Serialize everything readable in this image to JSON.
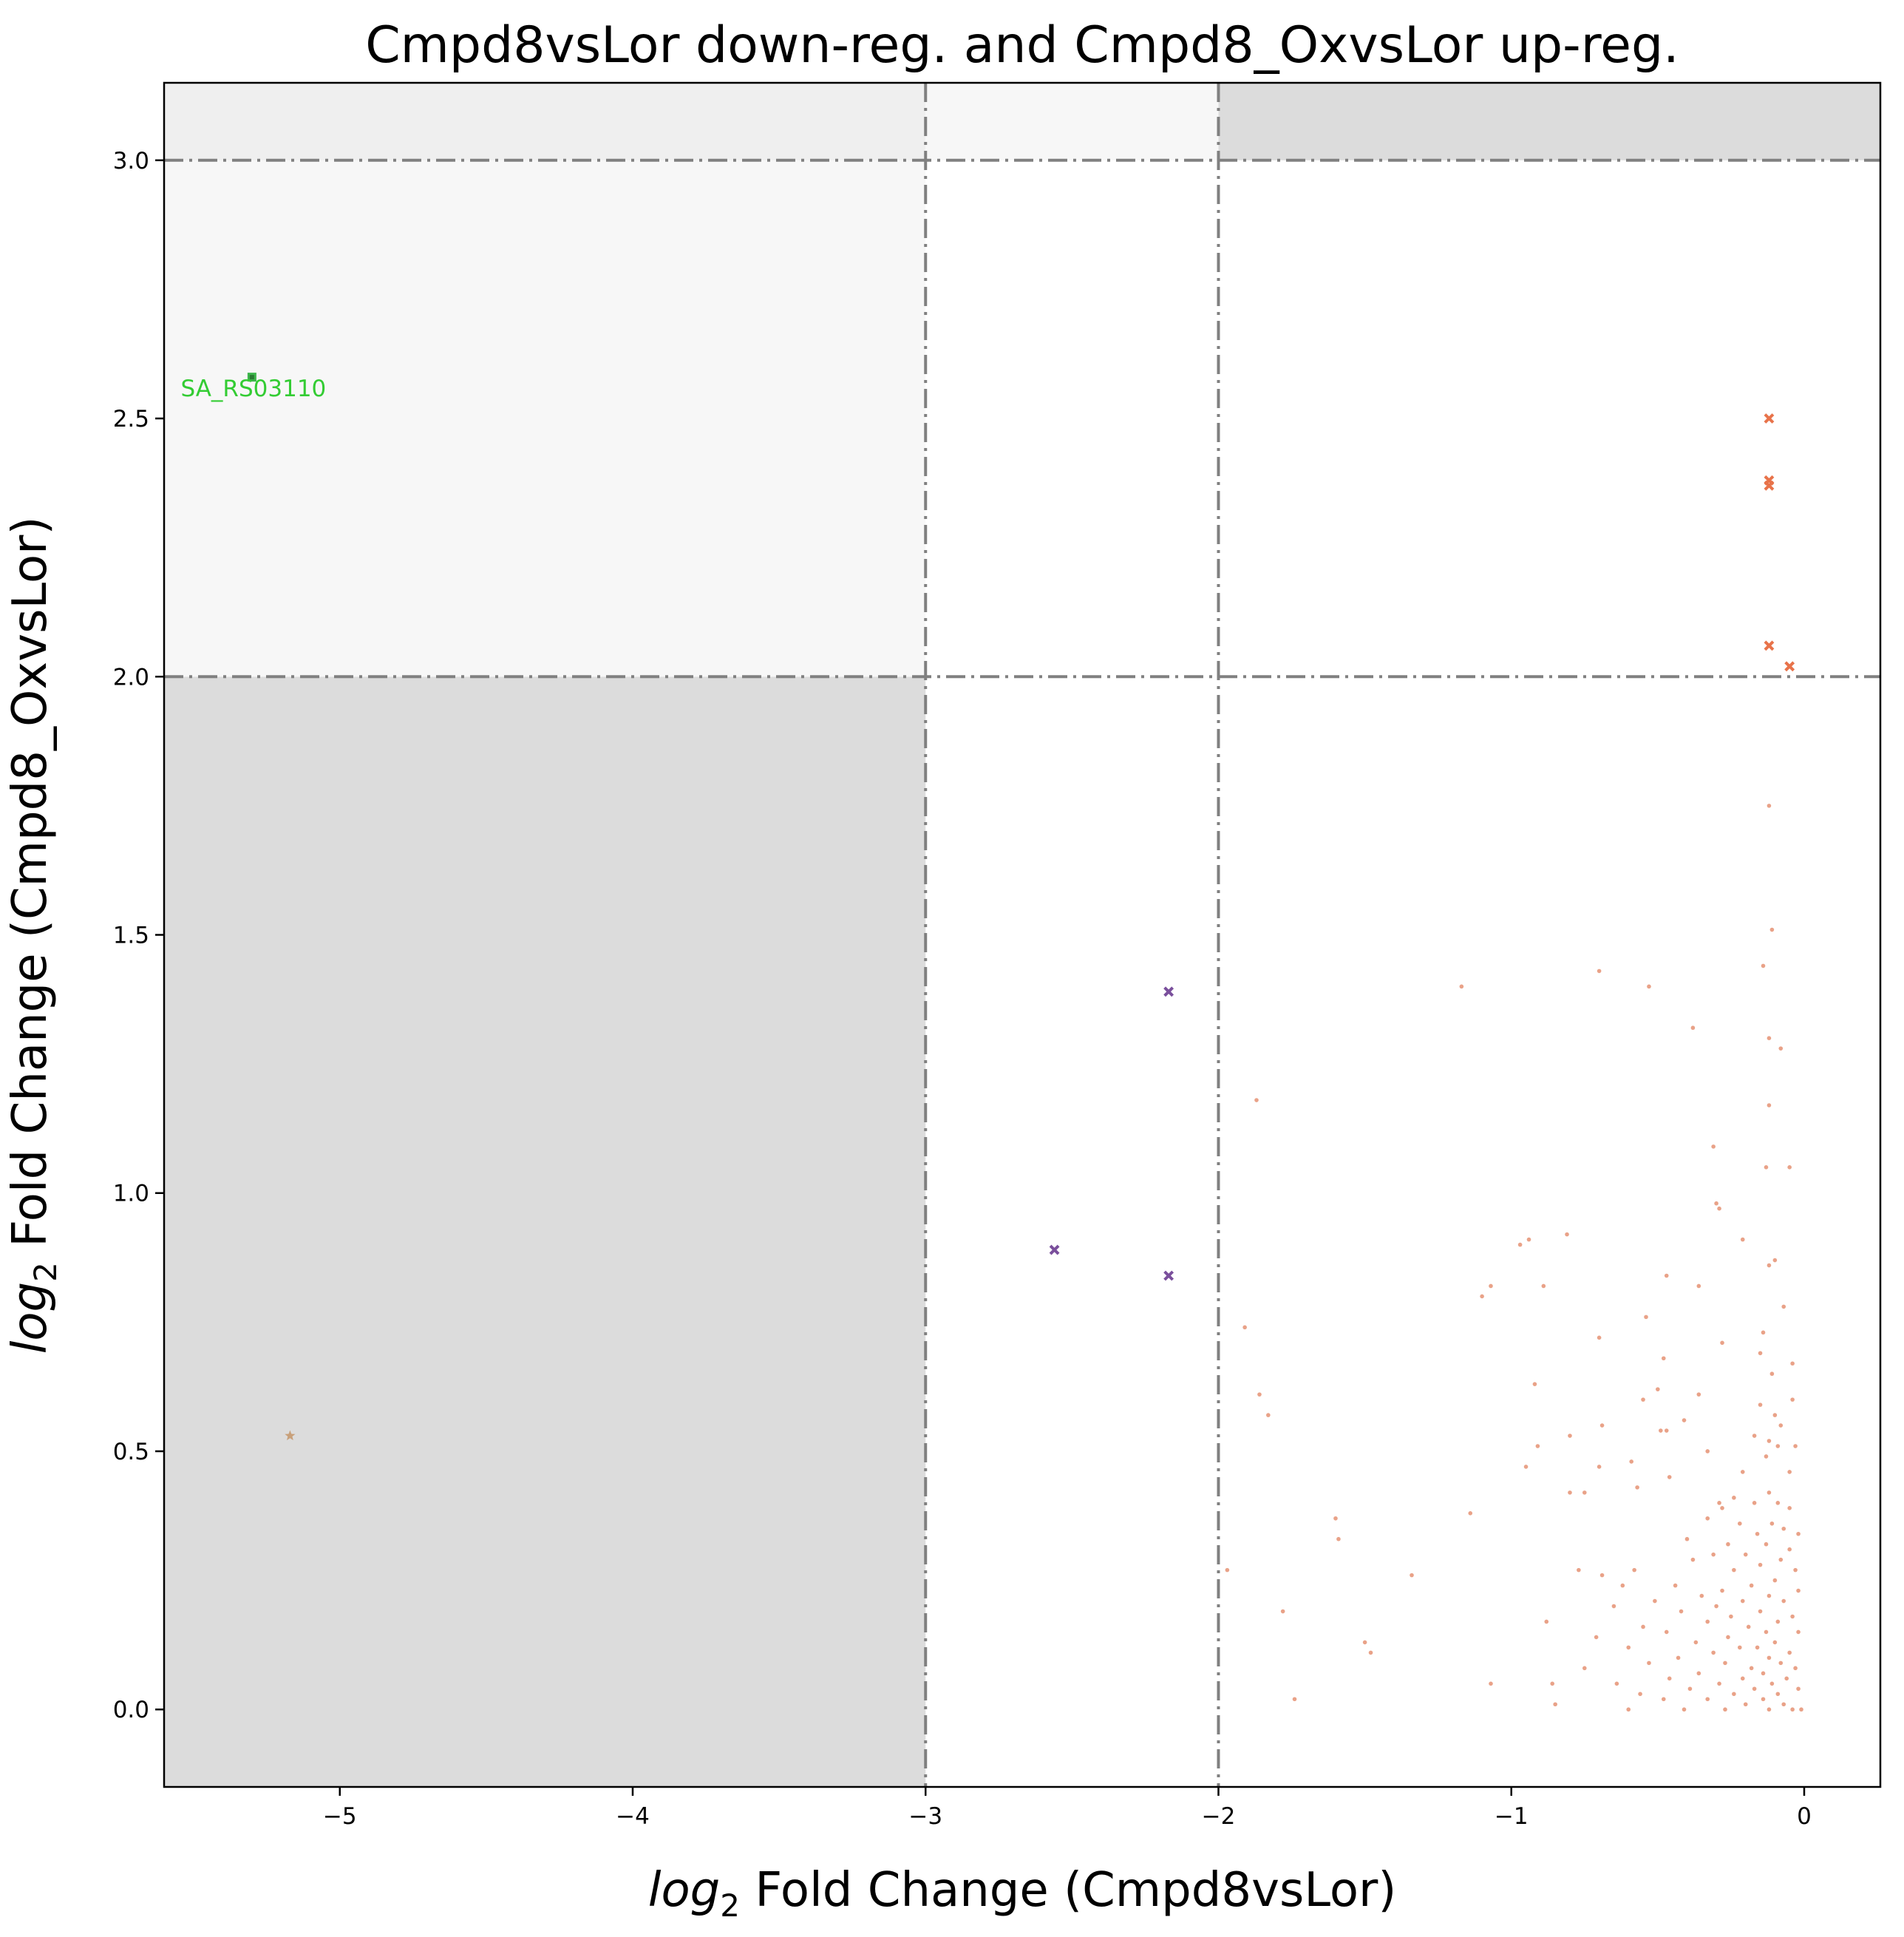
{
  "chart_data": {
    "type": "scatter",
    "title": "Cmpd8vsLor down-reg. and Cmpd8_OxvsLor up-reg.",
    "xlabel_prefix": "log",
    "xlabel_sub": "2",
    "xlabel_suffix": " Fold Change (Cmpd8vsLor)",
    "ylabel_prefix": "log",
    "ylabel_sub": "2",
    "ylabel_suffix": " Fold Change (Cmpd8_OxvsLor)",
    "xlim": [
      -5.6,
      0.26
    ],
    "ylim": [
      -0.15,
      3.15
    ],
    "grid": false,
    "x_ticks": [
      {
        "value": -5,
        "label": "−5"
      },
      {
        "value": -4,
        "label": "−4"
      },
      {
        "value": -3,
        "label": "−3"
      },
      {
        "value": -2,
        "label": "−2"
      },
      {
        "value": -1,
        "label": "−1"
      },
      {
        "value": 0,
        "label": "0"
      }
    ],
    "y_ticks": [
      {
        "value": 0.0,
        "label": "0.0"
      },
      {
        "value": 0.5,
        "label": "0.5"
      },
      {
        "value": 1.0,
        "label": "1.0"
      },
      {
        "value": 1.5,
        "label": "1.5"
      },
      {
        "value": 2.0,
        "label": "2.0"
      },
      {
        "value": 2.5,
        "label": "2.5"
      },
      {
        "value": 3.0,
        "label": "3.0"
      }
    ],
    "threshold_lines": {
      "x": [
        -3.0,
        -2.0
      ],
      "y": [
        2.0,
        3.0
      ]
    },
    "shaded_regions": [
      {
        "x": [
          -5.6,
          -3.0
        ],
        "y": [
          -0.15,
          2.0
        ],
        "color": "#dcdcdc"
      },
      {
        "x": [
          -2.0,
          0.26
        ],
        "y": [
          3.0,
          3.15
        ],
        "color": "#dcdcdc"
      },
      {
        "x": [
          -5.6,
          -3.0
        ],
        "y": [
          3.0,
          3.15
        ],
        "color": "#efefef"
      },
      {
        "x": [
          -5.6,
          -3.0
        ],
        "y": [
          2.0,
          3.0
        ],
        "color": "#f7f7f7"
      },
      {
        "x": [
          -3.0,
          -2.0
        ],
        "y": [
          3.0,
          3.15
        ],
        "color": "#f7f7f7"
      }
    ],
    "colors": {
      "background_points": "#e07a55",
      "highlight_up": "#e8734a",
      "mid_points": "#7a4f9c",
      "annotated": "#3cb54a",
      "outlier": "#c8a07a",
      "annotation_text": "#33cc33"
    },
    "annotations": [
      {
        "x": -5.3,
        "y": 2.58,
        "text": "SA_RS03110"
      }
    ],
    "series": [
      {
        "role": "annotated",
        "marker": "square",
        "points": [
          [
            -5.3,
            2.58
          ]
        ]
      },
      {
        "role": "outlier",
        "marker": "star",
        "points": [
          [
            -5.17,
            0.53
          ]
        ]
      },
      {
        "role": "mid",
        "marker": "x",
        "points": [
          [
            -2.56,
            0.89
          ],
          [
            -2.17,
            1.39
          ],
          [
            -2.17,
            0.84
          ]
        ]
      },
      {
        "role": "up",
        "marker": "x",
        "points": [
          [
            -0.12,
            2.5
          ],
          [
            -0.12,
            2.38
          ],
          [
            -0.12,
            2.37
          ],
          [
            -0.12,
            2.06
          ],
          [
            -0.05,
            2.02
          ]
        ]
      },
      {
        "role": "background",
        "marker": "dot",
        "points": [
          [
            -0.12,
            1.75
          ],
          [
            -0.11,
            1.51
          ],
          [
            -0.14,
            1.44
          ],
          [
            -0.7,
            1.43
          ],
          [
            -0.53,
            1.4
          ],
          [
            -1.17,
            1.4
          ],
          [
            -0.38,
            1.32
          ],
          [
            -0.12,
            1.3
          ],
          [
            -0.08,
            1.28
          ],
          [
            -1.87,
            1.18
          ],
          [
            -0.12,
            1.17
          ],
          [
            -0.31,
            1.09
          ],
          [
            -0.13,
            1.05
          ],
          [
            -0.05,
            1.05
          ],
          [
            -0.3,
            0.98
          ],
          [
            -0.29,
            0.97
          ],
          [
            -0.21,
            0.91
          ],
          [
            -0.94,
            0.91
          ],
          [
            -0.81,
            0.92
          ],
          [
            -0.97,
            0.9
          ],
          [
            -0.1,
            0.87
          ],
          [
            -0.12,
            0.86
          ],
          [
            -0.47,
            0.84
          ],
          [
            -0.36,
            0.82
          ],
          [
            -1.07,
            0.82
          ],
          [
            -0.89,
            0.82
          ],
          [
            -1.1,
            0.8
          ],
          [
            -0.07,
            0.78
          ],
          [
            -0.54,
            0.76
          ],
          [
            -1.91,
            0.74
          ],
          [
            -0.7,
            0.72
          ],
          [
            -0.14,
            0.73
          ],
          [
            -0.28,
            0.71
          ],
          [
            -0.48,
            0.68
          ],
          [
            -0.15,
            0.69
          ],
          [
            -0.04,
            0.67
          ],
          [
            -0.11,
            0.65
          ],
          [
            -0.36,
            0.61
          ],
          [
            -0.92,
            0.63
          ],
          [
            -0.5,
            0.62
          ],
          [
            -1.86,
            0.61
          ],
          [
            -0.55,
            0.6
          ],
          [
            -0.04,
            0.6
          ],
          [
            -0.15,
            0.59
          ],
          [
            -1.83,
            0.57
          ],
          [
            -0.1,
            0.57
          ],
          [
            -0.41,
            0.56
          ],
          [
            -0.69,
            0.55
          ],
          [
            -0.49,
            0.54
          ],
          [
            -0.47,
            0.54
          ],
          [
            -0.08,
            0.55
          ],
          [
            -0.17,
            0.53
          ],
          [
            -0.8,
            0.53
          ],
          [
            -0.91,
            0.51
          ],
          [
            -0.12,
            0.52
          ],
          [
            -0.09,
            0.51
          ],
          [
            -0.33,
            0.5
          ],
          [
            -0.03,
            0.51
          ],
          [
            -0.59,
            0.48
          ],
          [
            -0.7,
            0.47
          ],
          [
            -0.95,
            0.47
          ],
          [
            -0.13,
            0.49
          ],
          [
            -0.21,
            0.46
          ],
          [
            -0.46,
            0.45
          ],
          [
            -0.05,
            0.46
          ],
          [
            -0.57,
            0.43
          ],
          [
            -0.75,
            0.42
          ],
          [
            -0.8,
            0.42
          ],
          [
            -0.24,
            0.41
          ],
          [
            -0.12,
            0.42
          ],
          [
            -0.09,
            0.4
          ],
          [
            -0.29,
            0.4
          ],
          [
            -0.17,
            0.4
          ],
          [
            -0.28,
            0.39
          ],
          [
            -0.05,
            0.39
          ],
          [
            -1.6,
            0.37
          ],
          [
            -1.14,
            0.38
          ],
          [
            -0.33,
            0.37
          ],
          [
            -0.22,
            0.36
          ],
          [
            -0.11,
            0.36
          ],
          [
            -0.07,
            0.35
          ],
          [
            -0.16,
            0.34
          ],
          [
            -0.02,
            0.34
          ],
          [
            -1.59,
            0.33
          ],
          [
            -0.4,
            0.33
          ],
          [
            -0.26,
            0.32
          ],
          [
            -0.13,
            0.32
          ],
          [
            -0.05,
            0.31
          ],
          [
            -0.2,
            0.3
          ],
          [
            -0.31,
            0.3
          ],
          [
            -0.08,
            0.29
          ],
          [
            -0.38,
            0.29
          ],
          [
            -0.15,
            0.28
          ],
          [
            -0.24,
            0.27
          ],
          [
            -0.03,
            0.27
          ],
          [
            -1.97,
            0.27
          ],
          [
            -0.58,
            0.27
          ],
          [
            -0.77,
            0.27
          ],
          [
            -0.69,
            0.26
          ],
          [
            -1.34,
            0.26
          ],
          [
            -0.1,
            0.25
          ],
          [
            -0.44,
            0.24
          ],
          [
            -0.18,
            0.24
          ],
          [
            -0.62,
            0.24
          ],
          [
            -0.28,
            0.23
          ],
          [
            -0.02,
            0.23
          ],
          [
            -0.12,
            0.22
          ],
          [
            -0.35,
            0.22
          ],
          [
            -0.21,
            0.21
          ],
          [
            -0.07,
            0.21
          ],
          [
            -0.51,
            0.21
          ],
          [
            -0.65,
            0.2
          ],
          [
            -0.3,
            0.2
          ],
          [
            -0.15,
            0.19
          ],
          [
            -1.78,
            0.19
          ],
          [
            -0.42,
            0.19
          ],
          [
            -0.25,
            0.18
          ],
          [
            -0.04,
            0.18
          ],
          [
            -0.09,
            0.17
          ],
          [
            -0.88,
            0.17
          ],
          [
            -0.33,
            0.17
          ],
          [
            -0.19,
            0.16
          ],
          [
            -0.55,
            0.16
          ],
          [
            -0.13,
            0.15
          ],
          [
            -0.47,
            0.15
          ],
          [
            -0.02,
            0.15
          ],
          [
            -0.71,
            0.14
          ],
          [
            -0.26,
            0.14
          ],
          [
            -0.37,
            0.13
          ],
          [
            -0.1,
            0.13
          ],
          [
            -1.5,
            0.13
          ],
          [
            -0.16,
            0.12
          ],
          [
            -0.6,
            0.12
          ],
          [
            -0.22,
            0.12
          ],
          [
            -0.05,
            0.11
          ],
          [
            -0.31,
            0.11
          ],
          [
            -1.48,
            0.11
          ],
          [
            -0.43,
            0.1
          ],
          [
            -0.12,
            0.1
          ],
          [
            -0.08,
            0.09
          ],
          [
            -0.27,
            0.09
          ],
          [
            -0.53,
            0.09
          ],
          [
            -0.18,
            0.08
          ],
          [
            -0.03,
            0.08
          ],
          [
            -0.75,
            0.08
          ],
          [
            -0.36,
            0.07
          ],
          [
            -0.14,
            0.07
          ],
          [
            -0.21,
            0.06
          ],
          [
            -0.06,
            0.06
          ],
          [
            -0.46,
            0.06
          ],
          [
            -0.29,
            0.05
          ],
          [
            -0.11,
            0.05
          ],
          [
            -1.07,
            0.05
          ],
          [
            -0.86,
            0.05
          ],
          [
            -0.64,
            0.05
          ],
          [
            -0.17,
            0.04
          ],
          [
            -0.39,
            0.04
          ],
          [
            -0.02,
            0.04
          ],
          [
            -0.24,
            0.03
          ],
          [
            -0.09,
            0.03
          ],
          [
            -0.56,
            0.03
          ],
          [
            -0.33,
            0.02
          ],
          [
            -0.14,
            0.02
          ],
          [
            -1.74,
            0.02
          ],
          [
            -0.48,
            0.02
          ],
          [
            -0.07,
            0.01
          ],
          [
            -0.2,
            0.01
          ],
          [
            -0.85,
            0.01
          ],
          [
            -0.04,
            0.0
          ],
          [
            -0.27,
            0.0
          ],
          [
            -0.12,
            0.0
          ],
          [
            -0.41,
            0.0
          ],
          [
            -0.6,
            0.0
          ],
          [
            -0.01,
            0.0
          ]
        ]
      }
    ]
  }
}
